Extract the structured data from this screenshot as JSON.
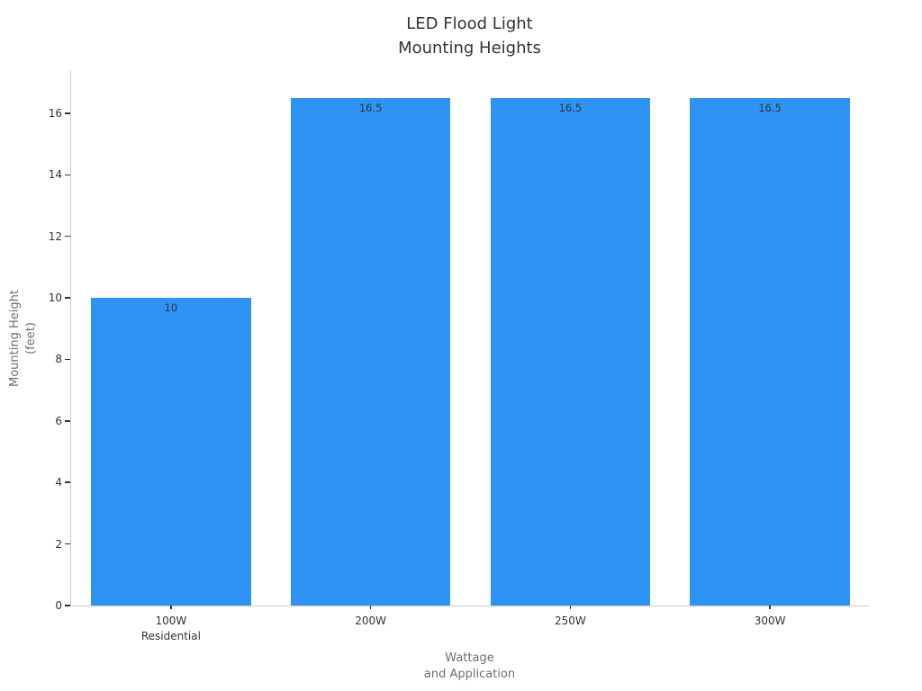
{
  "chart_data": {
    "type": "bar",
    "title": "LED Flood Light\nMounting Heights",
    "xlabel": "Wattage\nand Application",
    "ylabel": "Mounting Height\n(feet)",
    "categories": [
      "100W\nResidential",
      "200W",
      "250W",
      "300W"
    ],
    "values": [
      10,
      16.5,
      16.5,
      16.5
    ],
    "value_labels": [
      "10",
      "16.5",
      "16.5",
      "16.5"
    ],
    "yticks": [
      0,
      2,
      4,
      6,
      8,
      10,
      12,
      14,
      16
    ],
    "ylim": [
      0,
      17.4
    ],
    "grid": false,
    "legend": false,
    "bar_width_fraction": 0.8,
    "bar_color": "#2e93f5",
    "colors": {
      "background": "#ffffff",
      "axis_line": "#cccccc",
      "tick_mark": "#333333",
      "tick_label": "#333333",
      "axis_title": "#6e6e6e",
      "title": "#333333",
      "value_label": "#333333"
    }
  }
}
